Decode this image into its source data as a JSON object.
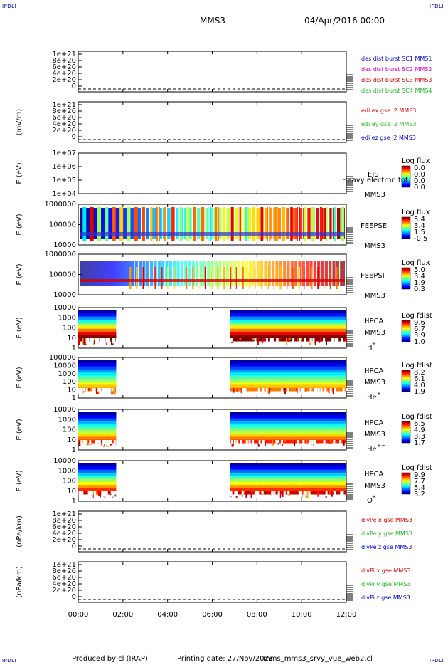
{
  "header": {
    "title": "MMS3",
    "date": "04/Apr/2016 00:00",
    "corner_tl": "IPDLI",
    "corner_tr": "IPDLI",
    "corner_bl": "IPDLI",
    "corner_br": "IPDLI"
  },
  "footer": {
    "produced": "Produced by cl (IRAP)",
    "printing": "Printing date: 27/Nov/2023",
    "file": "mms_mms3_srvy_vue_web2.cl"
  },
  "colors": {
    "blue": "#0000cc",
    "magenta": "#cc00cc",
    "red": "#dd0000",
    "green": "#22bb22"
  },
  "chart_data": {
    "type": "heatmap",
    "x_ticks": [
      "00:00",
      "02:00",
      "04:00",
      "06:00",
      "08:00",
      "10:00",
      "12:00"
    ],
    "x_range_hours": [
      0,
      12
    ],
    "panels": [
      {
        "kind": "line",
        "ylabel": "",
        "yticks": [
          "1e+21",
          "8e+20",
          "6e+20",
          "4e+20",
          "2e+20",
          "0"
        ],
        "legend": [
          {
            "text": "des dist burst SC1 MMS1",
            "color": "blue"
          },
          {
            "text": "des dist burst SC2 MMS2",
            "color": "magenta"
          },
          {
            "text": "des dist burst SC3 MMS3",
            "color": "red"
          },
          {
            "text": "des dist burst SC4 MMS4",
            "color": "green"
          }
        ]
      },
      {
        "kind": "line",
        "ylabel": "(mV/m)",
        "yticks": [
          "1e+21",
          "8e+20",
          "6e+20",
          "4e+20",
          "2e+20",
          "0"
        ],
        "legend": [
          {
            "text": "edi ex gse l2 MMS3",
            "color": "red"
          },
          {
            "text": "edi ey gse l2 MMS3",
            "color": "green"
          },
          {
            "text": "edi ez gse l2 MMS3",
            "color": "blue"
          }
        ]
      },
      {
        "kind": "spec",
        "ylabel": "E (eV)",
        "yticks": [
          "1e+07",
          "1e+06",
          "1e+05",
          "1e+04"
        ],
        "inst": "EIS",
        "sc": "MMS3",
        "species": "",
        "cbar_title": "Log flux",
        "cbar_ticks": [
          "0.0",
          "0.0",
          "0.0",
          "0.0"
        ],
        "note": "Heavy electron tof",
        "coverage": "none"
      },
      {
        "kind": "spec",
        "ylabel": "E (eV)",
        "yticks": [
          "1000000",
          "100000",
          "10000"
        ],
        "inst": "FEEPSE",
        "sc": "MMS3",
        "species": "",
        "cbar_title": "Log flux",
        "cbar_ticks": [
          "5.4",
          "3.4",
          "1.5",
          "-0.5"
        ],
        "coverage": "feeps_e"
      },
      {
        "kind": "spec",
        "ylabel": "E (eV)",
        "yticks": [
          "1000000",
          "100000",
          "10000"
        ],
        "inst": "FEEPSI",
        "sc": "MMS3",
        "species": "",
        "cbar_title": "Log flux",
        "cbar_ticks": [
          "5.0",
          "3.4",
          "1.9",
          "0.3"
        ],
        "coverage": "feeps_i"
      },
      {
        "kind": "spec",
        "ylabel": "E (eV)",
        "yticks": [
          "10000",
          "1000",
          "100",
          "10",
          "1"
        ],
        "inst": "HPCA",
        "sc": "MMS3",
        "species": "H",
        "sup": "+",
        "cbar_title": "Log fdist",
        "cbar_ticks": [
          "9.6",
          "6.7",
          "3.9",
          "1.0"
        ],
        "coverage": "hpca_h",
        "intervals_hours": [
          [
            0.0,
            1.7
          ],
          [
            6.8,
            12.0
          ]
        ]
      },
      {
        "kind": "spec",
        "ylabel": "E (eV)",
        "yticks": [
          "100000",
          "10000",
          "1000",
          "100",
          "10",
          "1"
        ],
        "inst": "HPCA",
        "sc": "MMS3",
        "species": "He",
        "sup": "+",
        "cbar_title": "Log fdist",
        "cbar_ticks": [
          "8.2",
          "6.1",
          "4.0",
          "1.9"
        ],
        "coverage": "hpca_he",
        "intervals_hours": [
          [
            0.0,
            1.7
          ],
          [
            6.8,
            12.0
          ]
        ]
      },
      {
        "kind": "spec",
        "ylabel": "E (eV)",
        "yticks": [
          "10000",
          "1000",
          "100",
          "10",
          "1"
        ],
        "inst": "HPCA",
        "sc": "MMS3",
        "species": "He",
        "sup": "++",
        "cbar_title": "Log fdist",
        "cbar_ticks": [
          "6.5",
          "4.9",
          "3.3",
          "1.7"
        ],
        "coverage": "hpca_hepp",
        "intervals_hours": [
          [
            0.0,
            1.7
          ],
          [
            6.8,
            12.0
          ]
        ]
      },
      {
        "kind": "spec",
        "ylabel": "E (eV)",
        "yticks": [
          "10000",
          "1000",
          "100",
          "10",
          "1"
        ],
        "inst": "HPCA",
        "sc": "MMS3",
        "species": "O",
        "sup": "+",
        "cbar_title": "Log fdist",
        "cbar_ticks": [
          "9.9",
          "7.7",
          "5.4",
          "3.2"
        ],
        "coverage": "hpca_o",
        "intervals_hours": [
          [
            0.0,
            1.7
          ],
          [
            6.8,
            12.0
          ]
        ]
      },
      {
        "kind": "line",
        "ylabel": "(nPa/km)",
        "yticks": [
          "1e+21",
          "8e+20",
          "6e+20",
          "4e+20",
          "2e+20",
          "0"
        ],
        "legend": [
          {
            "text": "divPe x gse MMS3",
            "color": "red"
          },
          {
            "text": "divPe y gse MMS3",
            "color": "green"
          },
          {
            "text": "divPe z gse MMS3",
            "color": "blue"
          }
        ]
      },
      {
        "kind": "line",
        "ylabel": "(nPa/km)",
        "yticks": [
          "1e+21",
          "8e+20",
          "6e+20",
          "4e+20",
          "2e+20",
          "0"
        ],
        "legend": [
          {
            "text": "divPi x gse MMS3",
            "color": "red"
          },
          {
            "text": "divPi y gse MMS3",
            "color": "green"
          },
          {
            "text": "divPi z gse MMS3",
            "color": "blue"
          }
        ]
      }
    ]
  }
}
